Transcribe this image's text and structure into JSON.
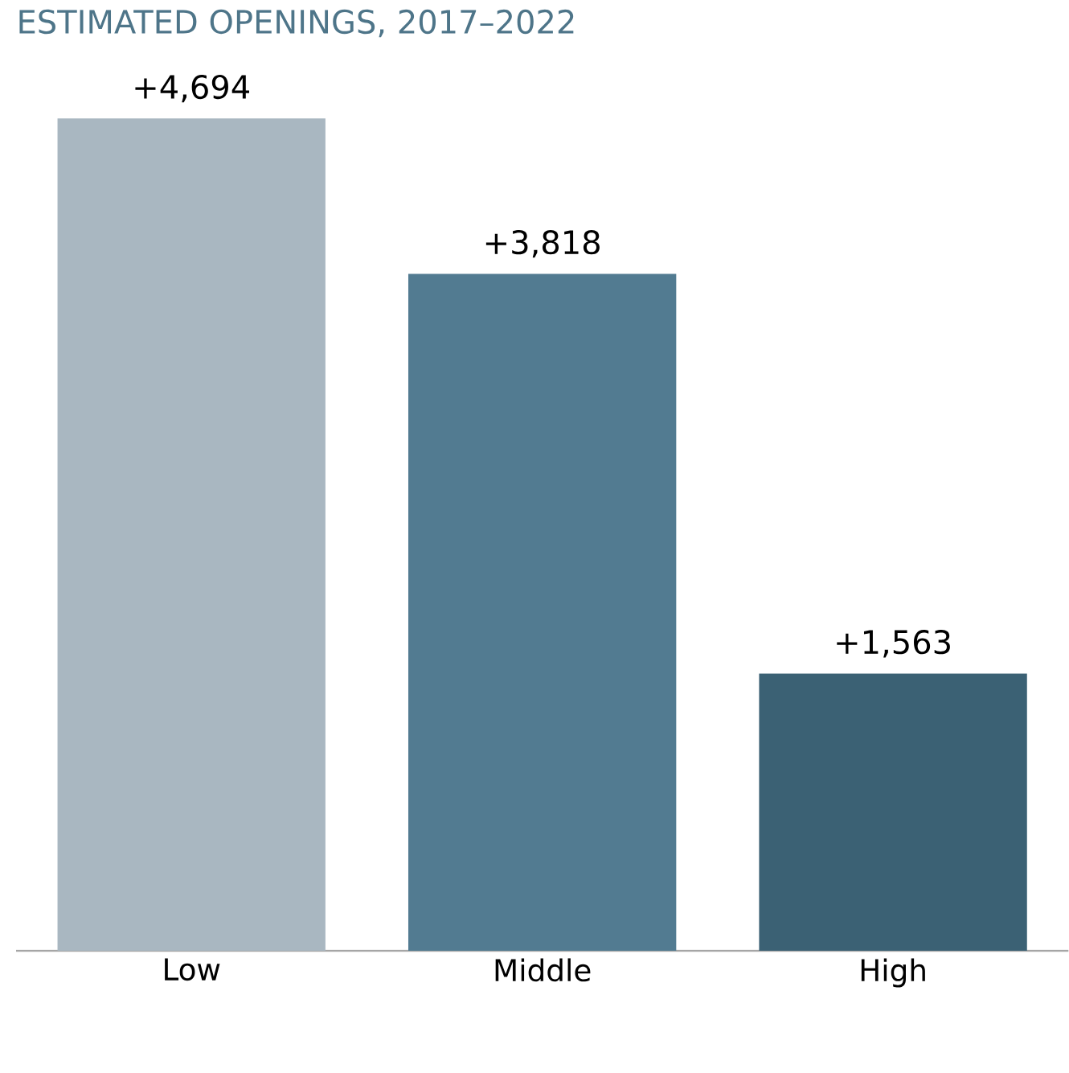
{
  "chart_data": {
    "type": "bar",
    "title": "ESTIMATED OPENINGS, 2017–2022",
    "categories": [
      "Low",
      "Middle",
      "High"
    ],
    "values": [
      4694,
      3818,
      1563
    ],
    "colors": [
      "#a9b7c1",
      "#527b91",
      "#3b6174"
    ],
    "value_labels": [
      "+4,694",
      "+3,818",
      "+1,563"
    ]
  }
}
